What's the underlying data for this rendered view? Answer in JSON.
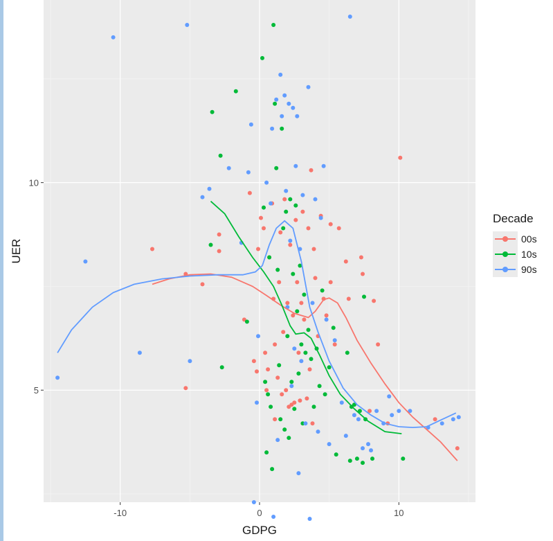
{
  "chart_data": {
    "type": "scatter",
    "title": "",
    "xlabel": "GDPG",
    "ylabel": "UER",
    "xlim": [
      -15.5,
      15.5
    ],
    "ylim": [
      2.3,
      14.4
    ],
    "x_ticks": [
      -10,
      0,
      10
    ],
    "y_ticks": [
      5,
      10
    ],
    "grid": true,
    "legend": {
      "title": "Decade",
      "position": "right",
      "entries": [
        "00s",
        "10s",
        "90s"
      ]
    },
    "series": [
      {
        "name": "00s",
        "color": "#F8766D",
        "points": [
          [
            -7.7,
            8.4
          ],
          [
            -5.3,
            7.8
          ],
          [
            -5.3,
            5.05
          ],
          [
            -4.1,
            7.55
          ],
          [
            -2.9,
            8.75
          ],
          [
            -2.9,
            8.35
          ],
          [
            -1.1,
            6.7
          ],
          [
            -0.7,
            9.75
          ],
          [
            -0.4,
            5.7
          ],
          [
            -0.2,
            5.45
          ],
          [
            -0.1,
            8.4
          ],
          [
            0.1,
            9.15
          ],
          [
            0.3,
            8.9
          ],
          [
            0.4,
            5.9
          ],
          [
            0.5,
            5.0
          ],
          [
            0.6,
            5.5
          ],
          [
            0.7,
            8.2
          ],
          [
            0.9,
            9.5
          ],
          [
            1.0,
            7.2
          ],
          [
            1.1,
            6.1
          ],
          [
            1.1,
            4.3
          ],
          [
            1.3,
            5.3
          ],
          [
            1.4,
            7.6
          ],
          [
            1.5,
            8.8
          ],
          [
            1.6,
            4.9
          ],
          [
            1.7,
            6.4
          ],
          [
            1.8,
            9.6
          ],
          [
            1.9,
            5.0
          ],
          [
            2.0,
            7.1
          ],
          [
            2.1,
            4.6
          ],
          [
            2.2,
            8.5
          ],
          [
            2.3,
            4.65
          ],
          [
            2.4,
            6.8
          ],
          [
            2.5,
            4.7
          ],
          [
            2.6,
            9.1
          ],
          [
            2.7,
            7.6
          ],
          [
            2.8,
            5.9
          ],
          [
            2.9,
            4.75
          ],
          [
            3.0,
            7.1
          ],
          [
            3.1,
            9.3
          ],
          [
            3.2,
            6.7
          ],
          [
            3.4,
            4.8
          ],
          [
            3.5,
            8.9
          ],
          [
            3.6,
            5.5
          ],
          [
            3.7,
            10.3
          ],
          [
            3.8,
            4.2
          ],
          [
            3.9,
            8.4
          ],
          [
            4.0,
            7.7
          ],
          [
            4.2,
            6.3
          ],
          [
            4.4,
            9.2
          ],
          [
            4.6,
            7.2
          ],
          [
            4.8,
            6.8
          ],
          [
            5.1,
            7.6
          ],
          [
            5.1,
            9.0
          ],
          [
            5.4,
            6.1
          ],
          [
            5.7,
            8.9
          ],
          [
            6.2,
            8.1
          ],
          [
            6.4,
            7.2
          ],
          [
            7.3,
            8.2
          ],
          [
            7.4,
            7.8
          ],
          [
            7.9,
            4.5
          ],
          [
            8.2,
            7.15
          ],
          [
            8.5,
            6.1
          ],
          [
            9.2,
            4.2
          ],
          [
            10.1,
            10.6
          ],
          [
            12.6,
            4.3
          ],
          [
            14.2,
            3.6
          ]
        ]
      },
      {
        "name": "10s",
        "color": "#00BA38",
        "points": [
          [
            -3.5,
            8.5
          ],
          [
            -3.4,
            11.7
          ],
          [
            -2.8,
            10.65
          ],
          [
            -2.7,
            5.55
          ],
          [
            -1.7,
            12.2
          ],
          [
            -0.9,
            6.65
          ],
          [
            0.2,
            13.0
          ],
          [
            0.3,
            9.4
          ],
          [
            0.4,
            5.2
          ],
          [
            0.5,
            3.5
          ],
          [
            0.6,
            4.9
          ],
          [
            0.7,
            8.2
          ],
          [
            0.8,
            4.6
          ],
          [
            0.9,
            3.1
          ],
          [
            1.0,
            13.8
          ],
          [
            1.1,
            11.9
          ],
          [
            1.2,
            10.35
          ],
          [
            1.3,
            7.9
          ],
          [
            1.4,
            5.6
          ],
          [
            1.5,
            4.3
          ],
          [
            1.6,
            11.3
          ],
          [
            1.7,
            8.9
          ],
          [
            1.8,
            4.05
          ],
          [
            1.9,
            9.3
          ],
          [
            2.0,
            6.3
          ],
          [
            2.1,
            3.85
          ],
          [
            2.2,
            9.6
          ],
          [
            2.3,
            5.2
          ],
          [
            2.4,
            7.8
          ],
          [
            2.5,
            4.55
          ],
          [
            2.6,
            9.45
          ],
          [
            2.7,
            6.9
          ],
          [
            2.8,
            5.4
          ],
          [
            2.9,
            8.0
          ],
          [
            3.0,
            6.1
          ],
          [
            3.1,
            4.2
          ],
          [
            3.2,
            7.3
          ],
          [
            3.3,
            5.9
          ],
          [
            3.5,
            6.45
          ],
          [
            3.7,
            5.75
          ],
          [
            3.9,
            4.6
          ],
          [
            4.1,
            6.0
          ],
          [
            4.3,
            5.1
          ],
          [
            4.5,
            7.4
          ],
          [
            4.7,
            4.9
          ],
          [
            5.0,
            5.55
          ],
          [
            5.3,
            6.5
          ],
          [
            5.5,
            3.45
          ],
          [
            6.3,
            5.9
          ],
          [
            6.5,
            3.3
          ],
          [
            6.6,
            4.6
          ],
          [
            6.8,
            4.65
          ],
          [
            7.0,
            3.35
          ],
          [
            7.2,
            4.5
          ],
          [
            7.4,
            3.25
          ],
          [
            7.5,
            7.25
          ],
          [
            7.6,
            4.3
          ],
          [
            8.1,
            3.35
          ],
          [
            10.3,
            3.35
          ]
        ]
      },
      {
        "name": "90s",
        "color": "#619CFF",
        "points": [
          [
            -14.5,
            5.3
          ],
          [
            -12.5,
            8.1
          ],
          [
            -10.5,
            13.5
          ],
          [
            -8.6,
            5.9
          ],
          [
            -5.2,
            13.8
          ],
          [
            -5.0,
            5.7
          ],
          [
            -4.1,
            9.65
          ],
          [
            -3.6,
            9.85
          ],
          [
            -2.2,
            10.35
          ],
          [
            -1.3,
            8.55
          ],
          [
            -0.8,
            10.25
          ],
          [
            -0.6,
            11.4
          ],
          [
            -0.4,
            2.3
          ],
          [
            -0.2,
            4.7
          ],
          [
            -0.1,
            6.3
          ],
          [
            0.5,
            10.0
          ],
          [
            0.8,
            9.5
          ],
          [
            0.9,
            11.3
          ],
          [
            1.0,
            1.95
          ],
          [
            1.2,
            12.0
          ],
          [
            1.3,
            3.8
          ],
          [
            1.5,
            12.6
          ],
          [
            1.6,
            11.6
          ],
          [
            1.8,
            12.1
          ],
          [
            1.9,
            9.8
          ],
          [
            2.0,
            7.0
          ],
          [
            2.1,
            11.9
          ],
          [
            2.2,
            8.6
          ],
          [
            2.3,
            5.1
          ],
          [
            2.4,
            11.8
          ],
          [
            2.5,
            6.0
          ],
          [
            2.6,
            10.4
          ],
          [
            2.7,
            11.6
          ],
          [
            2.8,
            3.0
          ],
          [
            2.9,
            8.4
          ],
          [
            3.0,
            5.7
          ],
          [
            3.1,
            9.7
          ],
          [
            3.3,
            4.2
          ],
          [
            3.5,
            12.3
          ],
          [
            3.6,
            1.9
          ],
          [
            3.8,
            7.1
          ],
          [
            4.0,
            9.6
          ],
          [
            4.2,
            4.0
          ],
          [
            4.4,
            9.15
          ],
          [
            4.6,
            10.4
          ],
          [
            4.8,
            6.7
          ],
          [
            5.0,
            3.7
          ],
          [
            5.4,
            6.2
          ],
          [
            5.9,
            4.7
          ],
          [
            6.2,
            3.9
          ],
          [
            6.5,
            14.0
          ],
          [
            6.8,
            4.4
          ],
          [
            7.1,
            4.3
          ],
          [
            7.4,
            3.6
          ],
          [
            7.8,
            3.7
          ],
          [
            8.0,
            3.55
          ],
          [
            8.4,
            4.5
          ],
          [
            8.9,
            4.2
          ],
          [
            9.3,
            4.85
          ],
          [
            9.5,
            4.4
          ],
          [
            10.0,
            4.5
          ],
          [
            10.8,
            4.5
          ],
          [
            12.1,
            4.1
          ],
          [
            13.1,
            4.2
          ],
          [
            13.9,
            4.3
          ],
          [
            14.3,
            4.35
          ]
        ]
      }
    ],
    "smooth": [
      {
        "name": "00s",
        "color": "#F8766D",
        "points": [
          [
            -7.7,
            7.55
          ],
          [
            -6.5,
            7.68
          ],
          [
            -5.0,
            7.78
          ],
          [
            -3.5,
            7.8
          ],
          [
            -2.0,
            7.72
          ],
          [
            -0.5,
            7.5
          ],
          [
            0.5,
            7.28
          ],
          [
            1.5,
            7.05
          ],
          [
            2.5,
            6.85
          ],
          [
            3.5,
            6.75
          ],
          [
            4.0,
            6.9
          ],
          [
            4.6,
            7.18
          ],
          [
            5.0,
            7.22
          ],
          [
            5.6,
            7.1
          ],
          [
            6.2,
            6.75
          ],
          [
            7.0,
            6.2
          ],
          [
            8.0,
            5.65
          ],
          [
            9.0,
            5.15
          ],
          [
            10.0,
            4.7
          ],
          [
            11.0,
            4.35
          ],
          [
            12.0,
            4.05
          ],
          [
            13.0,
            3.75
          ],
          [
            14.2,
            3.3
          ]
        ]
      },
      {
        "name": "10s",
        "color": "#00BA38",
        "points": [
          [
            -3.5,
            9.55
          ],
          [
            -2.5,
            9.25
          ],
          [
            -1.5,
            8.7
          ],
          [
            -0.5,
            8.2
          ],
          [
            0.3,
            7.85
          ],
          [
            1.0,
            7.5
          ],
          [
            1.6,
            7.05
          ],
          [
            2.2,
            6.55
          ],
          [
            2.6,
            6.35
          ],
          [
            3.2,
            6.38
          ],
          [
            3.7,
            6.25
          ],
          [
            4.3,
            5.85
          ],
          [
            5.0,
            5.35
          ],
          [
            5.8,
            4.9
          ],
          [
            6.8,
            4.55
          ],
          [
            7.8,
            4.25
          ],
          [
            9.0,
            4.0
          ],
          [
            10.2,
            3.95
          ]
        ]
      },
      {
        "name": "90s",
        "color": "#619CFF",
        "points": [
          [
            -14.5,
            5.9
          ],
          [
            -13.5,
            6.45
          ],
          [
            -12.0,
            7.0
          ],
          [
            -10.5,
            7.35
          ],
          [
            -9.0,
            7.55
          ],
          [
            -7.0,
            7.68
          ],
          [
            -5.0,
            7.75
          ],
          [
            -3.0,
            7.78
          ],
          [
            -1.2,
            7.78
          ],
          [
            -0.3,
            7.85
          ],
          [
            0.2,
            8.0
          ],
          [
            0.7,
            8.5
          ],
          [
            1.2,
            8.9
          ],
          [
            1.8,
            9.08
          ],
          [
            2.4,
            8.9
          ],
          [
            3.0,
            8.1
          ],
          [
            3.6,
            7.0
          ],
          [
            4.2,
            6.4
          ],
          [
            5.0,
            5.7
          ],
          [
            6.0,
            5.05
          ],
          [
            7.0,
            4.65
          ],
          [
            8.0,
            4.4
          ],
          [
            9.0,
            4.2
          ],
          [
            10.0,
            4.12
          ],
          [
            11.0,
            4.1
          ],
          [
            12.0,
            4.12
          ],
          [
            13.0,
            4.28
          ],
          [
            14.1,
            4.45
          ]
        ]
      }
    ]
  }
}
